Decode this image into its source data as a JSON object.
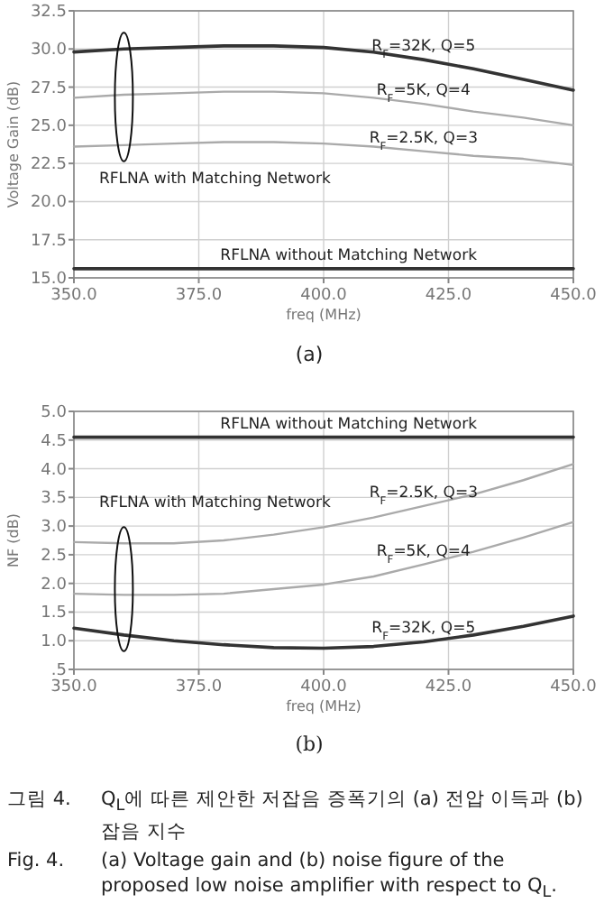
{
  "chart_data": [
    {
      "type": "line",
      "xlabel": "freq (MHz)",
      "ylabel": "Voltage Gain (dB)",
      "xlim": [
        350,
        450
      ],
      "ylim": [
        15,
        32.5
      ],
      "xticks": [
        {
          "value": 350,
          "label": "350.0"
        },
        {
          "value": 375,
          "label": "375.0"
        },
        {
          "value": 400,
          "label": "400.0"
        },
        {
          "value": 425,
          "label": "425.0"
        },
        {
          "value": 450,
          "label": "450.0"
        }
      ],
      "yticks": [
        {
          "value": 15,
          "label": "15.0"
        },
        {
          "value": 17.5,
          "label": "17.5"
        },
        {
          "value": 20,
          "label": "20.0"
        },
        {
          "value": 22.5,
          "label": "22.5"
        },
        {
          "value": 25,
          "label": "25.0"
        },
        {
          "value": 27.5,
          "label": "27.5"
        },
        {
          "value": 30,
          "label": "30.0"
        },
        {
          "value": 32.5,
          "label": "32.5"
        }
      ],
      "grid": true,
      "x": [
        350,
        360,
        370,
        380,
        390,
        400,
        410,
        420,
        430,
        440,
        450
      ],
      "series": [
        {
          "name": "R$_{F}$=32K, Q=5",
          "color": "#333333",
          "values": [
            29.8,
            30.0,
            30.1,
            30.2,
            30.2,
            30.1,
            29.8,
            29.3,
            28.7,
            28.0,
            27.3
          ]
        },
        {
          "name": "R$_{F}$=5K, Q=4",
          "color": "#aaaaaa",
          "values": [
            26.8,
            27.0,
            27.1,
            27.2,
            27.2,
            27.1,
            26.8,
            26.4,
            25.9,
            25.5,
            25.0
          ]
        },
        {
          "name": "R$_{F}$=2.5K, Q=3",
          "color": "#aaaaaa",
          "values": [
            23.6,
            23.7,
            23.8,
            23.9,
            23.9,
            23.8,
            23.6,
            23.3,
            23.0,
            22.8,
            22.4
          ]
        },
        {
          "name": "RFLNA without Matching Network",
          "color": "#333333",
          "values": [
            15.6,
            15.6,
            15.6,
            15.6,
            15.6,
            15.6,
            15.6,
            15.6,
            15.6,
            15.6,
            15.6
          ]
        }
      ],
      "annotations": [
        "RFLNA with Matching Network",
        "(a)"
      ]
    },
    {
      "type": "line",
      "xlabel": "freq (MHz)",
      "ylabel": "NF (dB)",
      "xlim": [
        350,
        450
      ],
      "ylim": [
        0.5,
        5.0
      ],
      "xticks": [
        {
          "value": 350,
          "label": "350.0"
        },
        {
          "value": 375,
          "label": "375.0"
        },
        {
          "value": 400,
          "label": "400.0"
        },
        {
          "value": 425,
          "label": "425.0"
        },
        {
          "value": 450,
          "label": "450.0"
        }
      ],
      "yticks": [
        {
          "value": 0.5,
          "label": ".5"
        },
        {
          "value": 1,
          "label": "1.0"
        },
        {
          "value": 1.5,
          "label": "1.5"
        },
        {
          "value": 2,
          "label": "2.0"
        },
        {
          "value": 2.5,
          "label": "2.5"
        },
        {
          "value": 3,
          "label": "3.0"
        },
        {
          "value": 3.5,
          "label": "3.5"
        },
        {
          "value": 4,
          "label": "4.0"
        },
        {
          "value": 4.5,
          "label": "4.5"
        },
        {
          "value": 5,
          "label": "5.0"
        }
      ],
      "grid": true,
      "x": [
        350,
        360,
        370,
        380,
        390,
        400,
        410,
        420,
        430,
        440,
        450
      ],
      "series": [
        {
          "name": "RFLNA without Matching Network",
          "color": "#333333",
          "values": [
            4.55,
            4.55,
            4.55,
            4.55,
            4.55,
            4.55,
            4.55,
            4.55,
            4.55,
            4.55,
            4.55
          ]
        },
        {
          "name": "R$_{F}$=2.5K, Q=3",
          "color": "#aaaaaa",
          "values": [
            2.72,
            2.7,
            2.7,
            2.75,
            2.85,
            2.98,
            3.15,
            3.35,
            3.55,
            3.8,
            4.08
          ]
        },
        {
          "name": "R$_{F}$=5K, Q=4",
          "color": "#aaaaaa",
          "values": [
            1.82,
            1.8,
            1.8,
            1.82,
            1.9,
            1.98,
            2.12,
            2.33,
            2.55,
            2.8,
            3.07
          ]
        },
        {
          "name": "R$_{F}$=32K, Q=5",
          "color": "#333333",
          "values": [
            1.22,
            1.1,
            1.0,
            0.93,
            0.88,
            0.87,
            0.9,
            0.98,
            1.1,
            1.25,
            1.43
          ]
        }
      ],
      "annotations": [
        "RFLNA with Matching Network",
        "(b)",
        "그림 4.",
        "Q$_{L}$에 따른 제안한 저잡음 증폭기의 (a) 전압 이득과 (b) 잡음 지수",
        "Fig. 4.",
        "(a) Voltage gain and (b) noise figure of the proposed low noise amplifier with respect to Q$_{L}$."
      ]
    }
  ]
}
